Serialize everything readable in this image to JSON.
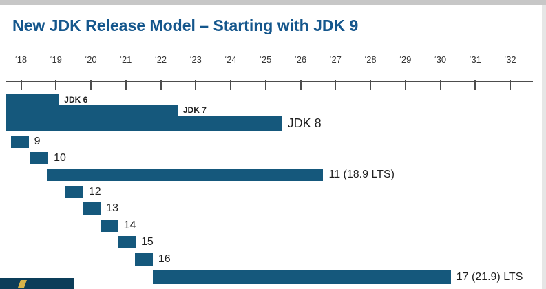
{
  "title": "New JDK Release Model – Starting with JDK 9",
  "colors": {
    "bar": "#15587c",
    "title": "#14568c",
    "axis": "#4d4d4d",
    "bar_label_text": "#1f1f1f",
    "year_label_text": "#333333",
    "window_edge_top": "#c7c7c7",
    "window_edge_right": "#e6e6e6",
    "logo_block": "#0c3d59",
    "logo_mark": "#d8b44a"
  },
  "chart_data": {
    "type": "bar",
    "subtype": "gantt-timeline",
    "title": "New JDK Release Model – Starting with JDK 9",
    "xlabel": "",
    "ylabel": "",
    "grid": false,
    "legend": "none",
    "bar_color": "#15587c",
    "x_axis": {
      "unit": "year",
      "range": [
        2017.55,
        2032.6
      ],
      "ticks": [
        {
          "label": "‘18",
          "year": 2018
        },
        {
          "label": "‘19",
          "year": 2019
        },
        {
          "label": "‘20",
          "year": 2020
        },
        {
          "label": "‘21",
          "year": 2021
        },
        {
          "label": "‘22",
          "year": 2022
        },
        {
          "label": "‘23",
          "year": 2023
        },
        {
          "label": "‘24",
          "year": 2024
        },
        {
          "label": "‘25",
          "year": 2025
        },
        {
          "label": "‘26",
          "year": 2026
        },
        {
          "label": "‘27",
          "year": 2027
        },
        {
          "label": "‘28",
          "year": 2028
        },
        {
          "label": "‘29",
          "year": 2029
        },
        {
          "label": "‘30",
          "year": 2030
        },
        {
          "label": "‘31",
          "year": 2031
        },
        {
          "label": "‘32",
          "year": 2032
        }
      ]
    },
    "bars": [
      {
        "label": "JDK 6",
        "start": 2017.56,
        "end": 2019.08
      },
      {
        "label": "JDK 7",
        "start": 2017.56,
        "end": 2022.48
      },
      {
        "label": "JDK 8",
        "start": 2017.56,
        "end": 2025.47
      },
      {
        "label": "9",
        "start": 2017.72,
        "end": 2018.22
      },
      {
        "label": "10",
        "start": 2018.26,
        "end": 2018.78
      },
      {
        "label": "11 (18.9 LTS)",
        "start": 2018.74,
        "end": 2026.65
      },
      {
        "label": "12",
        "start": 2019.27,
        "end": 2019.78
      },
      {
        "label": "13",
        "start": 2019.78,
        "end": 2020.28
      },
      {
        "label": "14",
        "start": 2020.28,
        "end": 2020.78
      },
      {
        "label": "15",
        "start": 2020.78,
        "end": 2021.28
      },
      {
        "label": "16",
        "start": 2021.26,
        "end": 2021.77
      },
      {
        "label": "17 (21.9) LTS",
        "start": 2021.77,
        "end": 2030.3
      }
    ]
  }
}
